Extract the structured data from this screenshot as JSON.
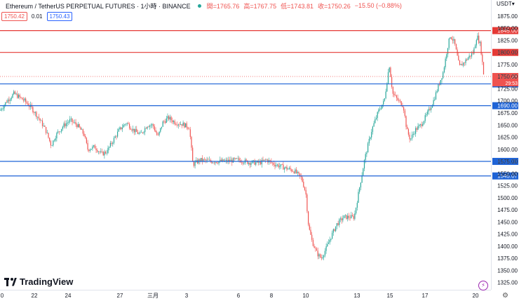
{
  "header": {
    "symbol": "Ethereum / TetherUS PERPETUAL FUTURES · 1小時 · BINANCE",
    "open": "開=1765.76",
    "high": "高=1767.75",
    "low": "低=1743.81",
    "close": "收=1750.26",
    "change": "−15.50 (−0.88%)",
    "sell_price": "1750.42",
    "spread": "0.01",
    "buy_price": "1750.43",
    "currency": "USDT"
  },
  "brand": "TradingView",
  "colors": {
    "up": "#26a69a",
    "down": "#ef5350",
    "red_line": "#e53935",
    "blue_line": "#1e63d6",
    "axis_text": "#131722"
  },
  "chart_data": {
    "type": "candlestick",
    "ylim": [
      1310,
      1885
    ],
    "y_ticks": [
      1325,
      1350,
      1375,
      1400,
      1425,
      1450,
      1475,
      1500,
      1525,
      1550,
      1575,
      1600,
      1625,
      1650,
      1675,
      1700,
      1725,
      1750,
      1775,
      1800,
      1825,
      1850,
      1875
    ],
    "x_ticks": [
      "0",
      "22",
      "24",
      "27",
      "三月",
      "3",
      "6",
      "8",
      "10",
      "13",
      "15",
      "17",
      "20"
    ],
    "levels": [
      {
        "value": 1845.0,
        "label": "1845.00",
        "color": "#e53935"
      },
      {
        "value": 1800.0,
        "label": "1800.00",
        "color": "#e53935"
      },
      {
        "value": 1735.0,
        "label": "1735.00",
        "color": "#1e63d6"
      },
      {
        "value": 1690.0,
        "label": "1690.00",
        "color": "#1e63d6"
      },
      {
        "value": 1575.0,
        "label": "1575.00",
        "color": "#1e63d6"
      },
      {
        "value": 1545.0,
        "label": "1545.07",
        "color": "#1e63d6"
      }
    ],
    "last_price": {
      "value": 1750.26,
      "label": "1750.26",
      "countdown": "29:53"
    },
    "path": [
      [
        0,
        1680
      ],
      [
        10,
        1700
      ],
      [
        20,
        1715
      ],
      [
        35,
        1700
      ],
      [
        45,
        1685
      ],
      [
        55,
        1665
      ],
      [
        65,
        1640
      ],
      [
        73,
        1608
      ],
      [
        80,
        1630
      ],
      [
        90,
        1648
      ],
      [
        100,
        1660
      ],
      [
        110,
        1650
      ],
      [
        120,
        1630
      ],
      [
        125,
        1600
      ],
      [
        135,
        1605
      ],
      [
        145,
        1590
      ],
      [
        152,
        1595
      ],
      [
        160,
        1615
      ],
      [
        170,
        1640
      ],
      [
        180,
        1655
      ],
      [
        190,
        1640
      ],
      [
        200,
        1630
      ],
      [
        210,
        1650
      ],
      [
        218,
        1650
      ],
      [
        225,
        1625
      ],
      [
        232,
        1655
      ],
      [
        240,
        1665
      ],
      [
        250,
        1655
      ],
      [
        260,
        1652
      ],
      [
        270,
        1645
      ],
      [
        275,
        1568
      ],
      [
        285,
        1578
      ],
      [
        300,
        1575
      ],
      [
        320,
        1575
      ],
      [
        340,
        1578
      ],
      [
        355,
        1573
      ],
      [
        370,
        1572
      ],
      [
        380,
        1578
      ],
      [
        390,
        1570
      ],
      [
        400,
        1565
      ],
      [
        410,
        1560
      ],
      [
        420,
        1555
      ],
      [
        430,
        1540
      ],
      [
        436,
        1510
      ],
      [
        440,
        1440
      ],
      [
        445,
        1410
      ],
      [
        452,
        1385
      ],
      [
        458,
        1375
      ],
      [
        465,
        1395
      ],
      [
        472,
        1420
      ],
      [
        480,
        1445
      ],
      [
        490,
        1460
      ],
      [
        505,
        1460
      ],
      [
        510,
        1500
      ],
      [
        515,
        1540
      ],
      [
        520,
        1580
      ],
      [
        530,
        1640
      ],
      [
        540,
        1680
      ],
      [
        548,
        1700
      ],
      [
        555,
        1775
      ],
      [
        560,
        1715
      ],
      [
        568,
        1700
      ],
      [
        575,
        1690
      ],
      [
        580,
        1640
      ],
      [
        585,
        1620
      ],
      [
        592,
        1640
      ],
      [
        600,
        1650
      ],
      [
        610,
        1675
      ],
      [
        618,
        1700
      ],
      [
        625,
        1730
      ],
      [
        632,
        1760
      ],
      [
        638,
        1810
      ],
      [
        642,
        1835
      ],
      [
        648,
        1820
      ],
      [
        655,
        1770
      ],
      [
        662,
        1780
      ],
      [
        668,
        1790
      ],
      [
        675,
        1800
      ],
      [
        680,
        1835
      ],
      [
        685,
        1815
      ],
      [
        690,
        1750
      ]
    ]
  }
}
